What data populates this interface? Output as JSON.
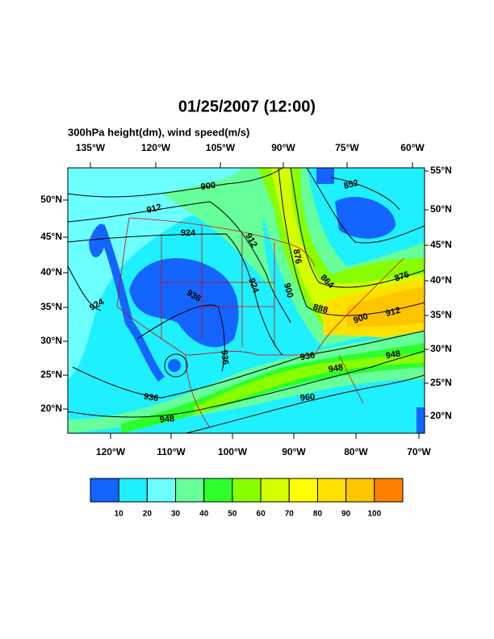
{
  "header": {
    "title": "01/25/2007 (12:00)",
    "subtitle": "300hPa height(dm), wind speed(m/s)"
  },
  "map": {
    "top_lon_labels": [
      "135°W",
      "120°W",
      "105°W",
      "90°W",
      "75°W",
      "60°W"
    ],
    "bottom_lon_labels": [
      "120°W",
      "110°W",
      "100°W",
      "90°W",
      "80°W",
      "70°W"
    ],
    "left_lat_labels": [
      "50°N",
      "45°N",
      "40°N",
      "35°N",
      "30°N",
      "25°N",
      "20°N"
    ],
    "right_lat_labels": [
      "55°N",
      "50°N",
      "45°N",
      "40°N",
      "35°N",
      "30°N",
      "25°N",
      "20°N"
    ],
    "contour_labels": [
      "900",
      "912",
      "924",
      "912",
      "924",
      "936",
      "924",
      "936",
      "936",
      "948",
      "960",
      "948",
      "936",
      "948",
      "912",
      "876",
      "900",
      "888",
      "900",
      "864",
      "876",
      "852"
    ]
  },
  "colorbar": {
    "levels": [
      10,
      20,
      30,
      40,
      50,
      60,
      70,
      80,
      90,
      100
    ],
    "colors": [
      "#1464ff",
      "#1ef0ff",
      "#6cffff",
      "#66ff9a",
      "#2cff2c",
      "#88ff00",
      "#d4ff00",
      "#ffff00",
      "#ffe000",
      "#ffc400",
      "#ff8000"
    ]
  }
}
